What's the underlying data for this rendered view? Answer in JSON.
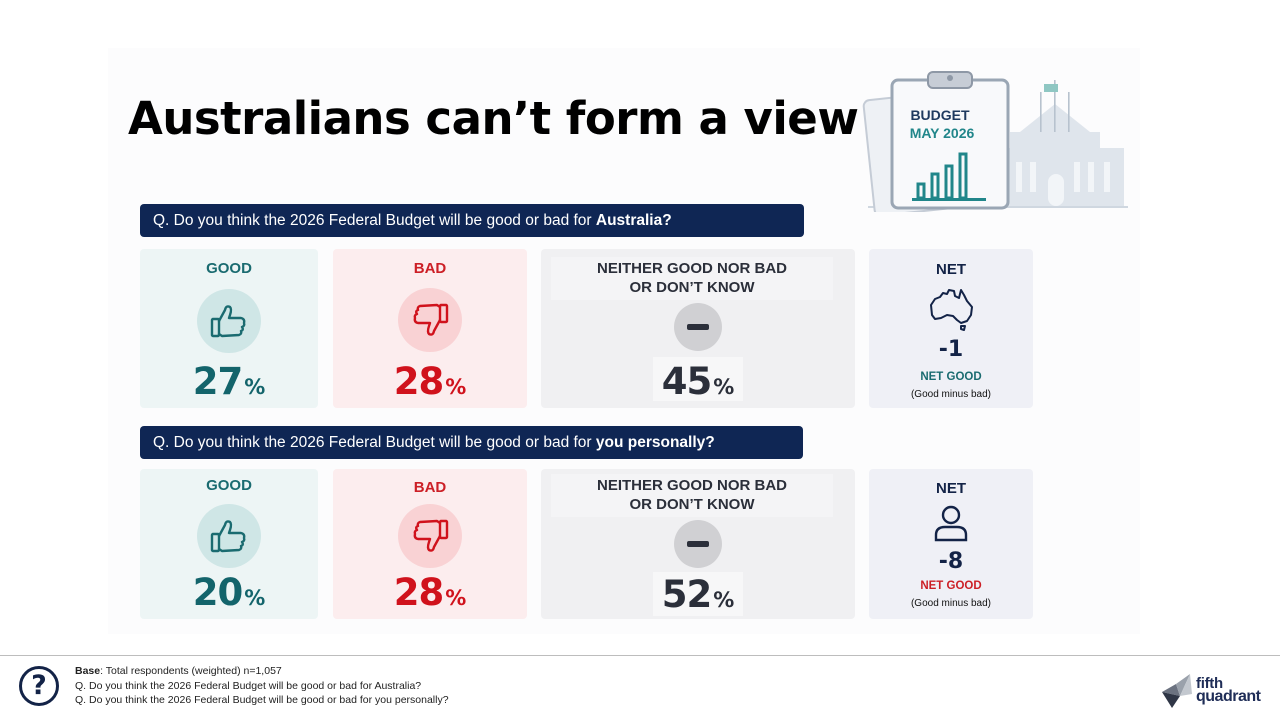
{
  "title": "Australians can’t form a view",
  "illustration": {
    "label_line1": "BUDGET",
    "label_line2": "MAY 2026"
  },
  "questions": [
    {
      "prefix": "Q. Do you think the 2026 Federal Budget will be good or bad for ",
      "emphasis": "Australia?",
      "good_label": "GOOD",
      "good_value": "27",
      "bad_label": "BAD",
      "bad_value": "28",
      "neither_label_line1": "NEITHER GOOD NOR BAD",
      "neither_label_line2": "OR DON’T KNOW",
      "neither_value": "45",
      "percent_symbol": "%",
      "net_label": "NET",
      "net_value": "-1",
      "net_good_label": "NET GOOD",
      "net_sub": "(Good minus bad)",
      "net_icon": "australia-map-icon"
    },
    {
      "prefix": "Q. Do you think the 2026 Federal Budget will be good or bad for ",
      "emphasis": "you personally?",
      "good_label": "GOOD",
      "good_value": "20",
      "bad_label": "BAD",
      "bad_value": "28",
      "neither_label_line1": "NEITHER GOOD NOR BAD",
      "neither_label_line2": "OR DON’T KNOW",
      "neither_value": "52",
      "percent_symbol": "%",
      "net_label": "NET",
      "net_value": "-8",
      "net_good_label": "NET GOOD",
      "net_sub": "(Good minus bad)",
      "net_icon": "person-icon"
    }
  ],
  "colors": {
    "good": "#13646b",
    "bad": "#d0121c",
    "navy": "#0f2654"
  },
  "footer": {
    "base_label": "Base",
    "base_text": ": Total respondents (weighted) n=1,057",
    "q1": "Q. Do you think the 2026 Federal Budget will be good or bad for Australia?",
    "q2": "Q. Do you think the 2026 Federal Budget will be good or bad for you personally?",
    "help_symbol": "?",
    "logo_line1": "fifth",
    "logo_line2": "quadrant"
  }
}
